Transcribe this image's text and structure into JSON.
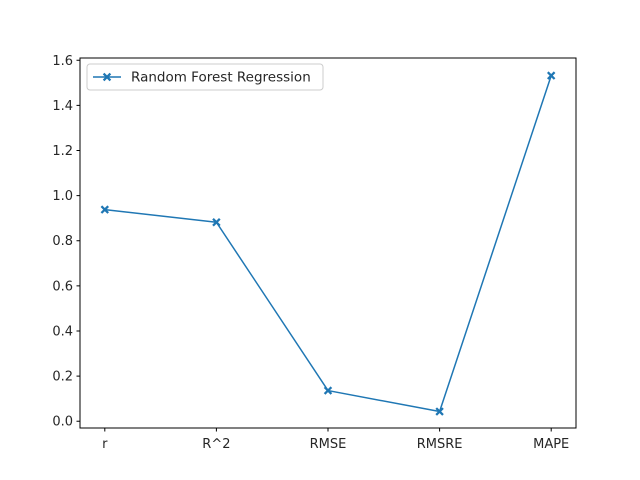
{
  "chart_data": {
    "type": "line",
    "title": "",
    "xlabel": "",
    "ylabel": "",
    "categories": [
      "r",
      "R^2",
      "RMSE",
      "RMSRE",
      "MAPE"
    ],
    "series": [
      {
        "name": "Random Forest Regression",
        "values": [
          0.938,
          0.882,
          0.136,
          0.043,
          1.532
        ],
        "color": "#1f77b4",
        "marker": "x-filled"
      }
    ],
    "ylim": [
      -0.03,
      1.61
    ],
    "yticks": [
      0.0,
      0.2,
      0.4,
      0.6,
      0.8,
      1.0,
      1.2,
      1.4,
      1.6
    ],
    "ytick_labels": [
      "0.0",
      "0.2",
      "0.4",
      "0.6",
      "0.8",
      "1.0",
      "1.2",
      "1.4",
      "1.6"
    ],
    "grid": false,
    "legend": {
      "placement": "upper-left"
    }
  }
}
